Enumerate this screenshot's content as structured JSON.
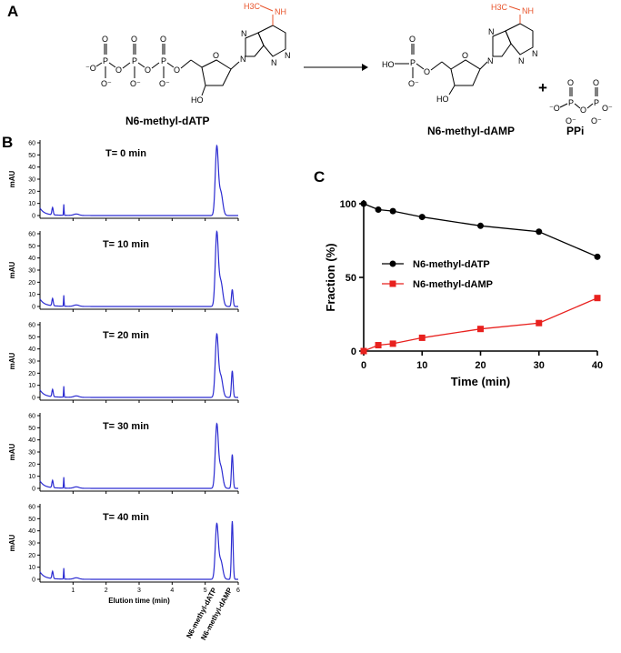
{
  "panels": {
    "a": "A",
    "b": "B",
    "c": "C"
  },
  "reaction": {
    "reactant_name": "N6-methyl-dATP",
    "product_name": "N6-methyl-dAMP",
    "byproduct_name": "PPi",
    "plus": "+",
    "methyl_group": "H3C",
    "methyl_nh": "NH",
    "atoms": {
      "O": "O",
      "P": "P",
      "N": "N",
      "HO": "HO",
      "OH": "OH"
    }
  },
  "chromatograms": {
    "y_axis_label": "mAU",
    "x_axis_label": "Elution time (min)",
    "x_ticks": [
      "1",
      "2",
      "3",
      "4",
      "5",
      "6"
    ],
    "peak_labels": [
      "N6-methyl-dATP",
      "N6-methyl-dAMP"
    ],
    "line_color": "#2b2bd1",
    "traces": [
      {
        "time_label": "T= 0 min",
        "y_ticks": [
          "0",
          "10",
          "20",
          "30",
          "40",
          "50",
          "60"
        ],
        "ymax": 60,
        "dATP_peak": 55,
        "dAMP_peak": 0
      },
      {
        "time_label": "T= 10 min",
        "y_ticks": [
          "0",
          "10",
          "20",
          "30",
          "40",
          "50",
          "60"
        ],
        "ymax": 60,
        "dATP_peak": 59,
        "dAMP_peak": 14
      },
      {
        "time_label": "T= 20 min",
        "y_ticks": [
          "0",
          "10",
          "20",
          "30",
          "40",
          "50",
          "60"
        ],
        "ymax": 60,
        "dATP_peak": 50,
        "dAMP_peak": 22
      },
      {
        "time_label": "T= 30 min",
        "y_ticks": [
          "0",
          "10",
          "20",
          "30",
          "40",
          "50",
          "60"
        ],
        "ymax": 60,
        "dATP_peak": 51,
        "dAMP_peak": 28
      },
      {
        "time_label": "T= 40 min",
        "y_ticks": [
          "0",
          "10",
          "20",
          "30",
          "40",
          "50",
          "60"
        ],
        "ymax": 60,
        "dATP_peak": 44,
        "dAMP_peak": 48
      }
    ]
  },
  "chart_data": {
    "type": "line",
    "xlabel": "Time (min)",
    "ylabel": "Fraction (%)",
    "xlim": [
      0,
      40
    ],
    "ylim": [
      0,
      100
    ],
    "x_ticks": [
      0,
      10,
      20,
      30,
      40
    ],
    "y_ticks": [
      0,
      50,
      100
    ],
    "legend_position": "center-left",
    "series": [
      {
        "name": "N6-methyl-dATP",
        "color": "#000000",
        "marker": "circle",
        "x": [
          0,
          2.5,
          5,
          10,
          20,
          30,
          40
        ],
        "y": [
          100,
          96,
          95,
          91,
          85,
          81,
          64
        ]
      },
      {
        "name": "N6-methyl-dAMP",
        "color": "#e8211e",
        "marker": "square",
        "x": [
          0,
          2.5,
          5,
          10,
          20,
          30,
          40
        ],
        "y": [
          0,
          4,
          5,
          9,
          15,
          19,
          36
        ]
      }
    ]
  }
}
